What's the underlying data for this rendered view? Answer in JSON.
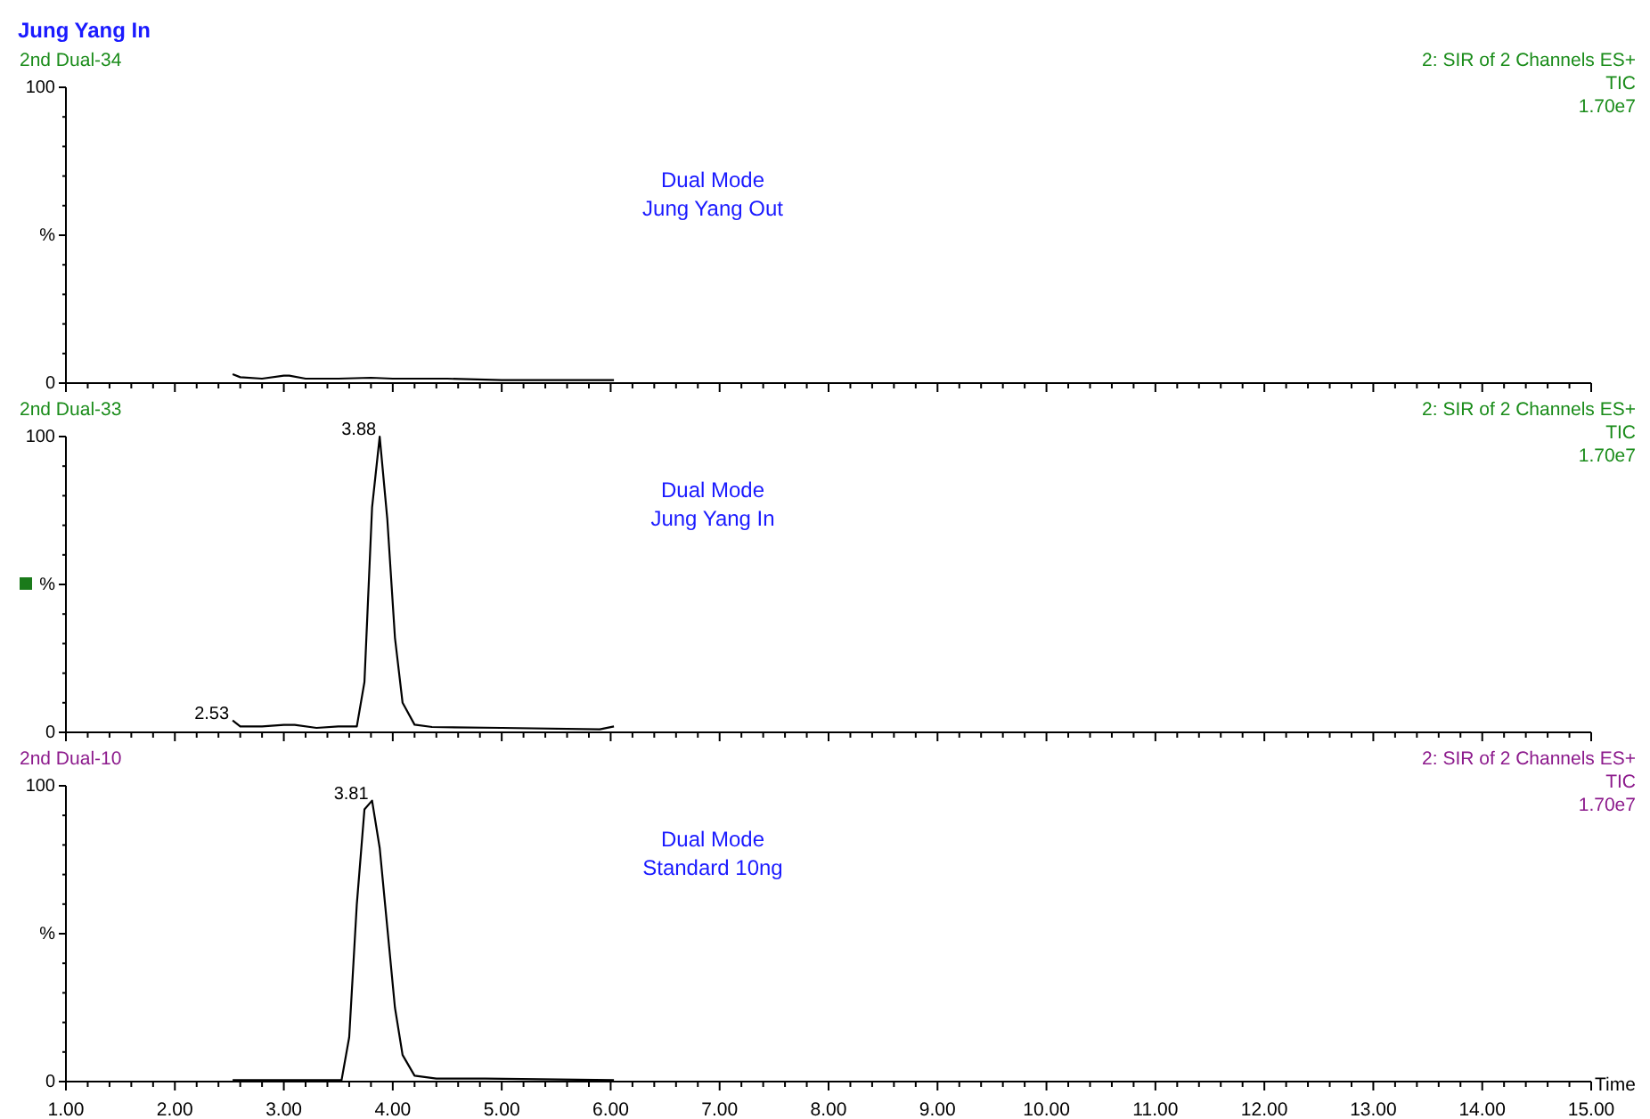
{
  "chart_data": [
    {
      "type": "line",
      "title": "Jung Yang  In",
      "subtitle": "2nd Dual-34",
      "xlim": [
        1,
        15
      ],
      "ylim": [
        0,
        100
      ],
      "yticks": [
        {
          "value": 0,
          "label": "0"
        },
        {
          "value": 50,
          "label": "%"
        },
        {
          "value": 100,
          "label": "100"
        }
      ],
      "tick_labels": "y",
      "marker": "none",
      "line_style": "solid",
      "xticks": [
        {
          "value": 1,
          "label": null
        },
        {
          "value": 2,
          "label": null
        },
        {
          "value": 3,
          "label": null
        },
        {
          "value": 4,
          "label": null
        },
        {
          "value": 5,
          "label": null
        },
        {
          "value": 6,
          "label": null
        },
        {
          "value": 7,
          "label": null
        },
        {
          "value": 8,
          "label": null
        },
        {
          "value": 9,
          "label": null
        },
        {
          "value": 10,
          "label": null
        },
        {
          "value": 11,
          "label": null
        },
        {
          "value": 12,
          "label": null
        },
        {
          "value": 13,
          "label": null
        },
        {
          "value": 14,
          "label": null
        },
        {
          "value": 15,
          "label": null
        }
      ],
      "annotations": [
        "2: SIR of 2 Channels ES+",
        "TIC",
        "1.70e7",
        "Dual  Mode",
        "Jung Yang Out"
      ],
      "x": [
        2.53,
        2.6,
        2.8,
        3.0,
        3.05,
        3.2,
        3.5,
        3.8,
        4.0,
        4.5,
        5.0,
        5.5,
        6.03
      ],
      "series": [
        {
          "color": "#000000",
          "values": [
            3,
            2,
            1.5,
            2.5,
            2.5,
            1.5,
            1.5,
            1.8,
            1.5,
            1.5,
            1,
            1,
            1
          ]
        }
      ]
    },
    {
      "type": "line",
      "subtitle": "2nd Dual-33",
      "xlim": [
        1,
        15
      ],
      "ylim": [
        0,
        100
      ],
      "yticks": [
        {
          "value": 0,
          "label": "0"
        },
        {
          "value": 50,
          "label": "%"
        },
        {
          "value": 100,
          "label": "100"
        }
      ],
      "tick_labels": "y",
      "marker": "none",
      "line_style": "solid",
      "xticks": [
        {
          "value": 1,
          "label": null
        },
        {
          "value": 2,
          "label": null
        },
        {
          "value": 3,
          "label": null
        },
        {
          "value": 4,
          "label": null
        },
        {
          "value": 5,
          "label": null
        },
        {
          "value": 6,
          "label": null
        },
        {
          "value": 7,
          "label": null
        },
        {
          "value": 8,
          "label": null
        },
        {
          "value": 9,
          "label": null
        },
        {
          "value": 10,
          "label": null
        },
        {
          "value": 11,
          "label": null
        },
        {
          "value": 12,
          "label": null
        },
        {
          "value": 13,
          "label": null
        },
        {
          "value": 14,
          "label": null
        },
        {
          "value": 15,
          "label": null
        }
      ],
      "annotations": [
        "2: SIR of 2 Channels ES+",
        "TIC",
        "1.70e7",
        "Dual  Mode",
        "Jung Yang  In",
        {
          "text": "3.88",
          "x": 3.88,
          "y": 100
        },
        {
          "text": "2.53",
          "x": 2.53,
          "y": 4
        }
      ],
      "x": [
        2.53,
        2.6,
        2.8,
        3.0,
        3.1,
        3.3,
        3.5,
        3.67,
        3.74,
        3.81,
        3.88,
        3.95,
        4.02,
        4.09,
        4.2,
        4.36,
        5.0,
        5.9,
        6.03
      ],
      "series": [
        {
          "color": "#000000",
          "values": [
            4,
            2,
            2,
            2.5,
            2.5,
            1.5,
            2,
            2,
            17,
            76,
            100,
            72,
            32,
            10,
            2.6,
            1.8,
            1.5,
            1,
            2
          ]
        }
      ]
    },
    {
      "type": "line",
      "subtitle": "2nd Dual-10",
      "xlabel": "Time",
      "xlim": [
        1,
        15
      ],
      "ylim": [
        0,
        100
      ],
      "yticks": [
        {
          "value": 0,
          "label": "0"
        },
        {
          "value": 50,
          "label": "%"
        },
        {
          "value": 100,
          "label": "100"
        }
      ],
      "marker": "none",
      "line_style": "solid",
      "xticks": [
        {
          "value": 1,
          "label": "1.00"
        },
        {
          "value": 2,
          "label": "2.00"
        },
        {
          "value": 3,
          "label": "3.00"
        },
        {
          "value": 4,
          "label": "4.00"
        },
        {
          "value": 5,
          "label": "5.00"
        },
        {
          "value": 6,
          "label": "6.00"
        },
        {
          "value": 7,
          "label": "7.00"
        },
        {
          "value": 8,
          "label": "8.00"
        },
        {
          "value": 9,
          "label": "9.00"
        },
        {
          "value": 10,
          "label": "10.00"
        },
        {
          "value": 11,
          "label": "11.00"
        },
        {
          "value": 12,
          "label": "12.00"
        },
        {
          "value": 13,
          "label": "13.00"
        },
        {
          "value": 14,
          "label": "14.00"
        },
        {
          "value": 15,
          "label": "15.00"
        }
      ],
      "annotations": [
        "2: SIR of 2 Channels ES+",
        "TIC",
        "1.70e7",
        "Dual  Mode",
        "Standard 10ng",
        {
          "text": "3.81",
          "x": 3.81,
          "y": 95
        }
      ],
      "x": [
        2.53,
        3.0,
        3.53,
        3.6,
        3.67,
        3.74,
        3.81,
        3.88,
        3.95,
        4.02,
        4.09,
        4.2,
        4.4,
        4.85,
        6.03
      ],
      "series": [
        {
          "color": "#000000",
          "values": [
            0.5,
            0.5,
            0.5,
            15,
            60,
            92,
            95,
            79,
            52,
            25,
            9,
            2,
            1,
            1,
            0.5
          ]
        }
      ]
    }
  ]
}
